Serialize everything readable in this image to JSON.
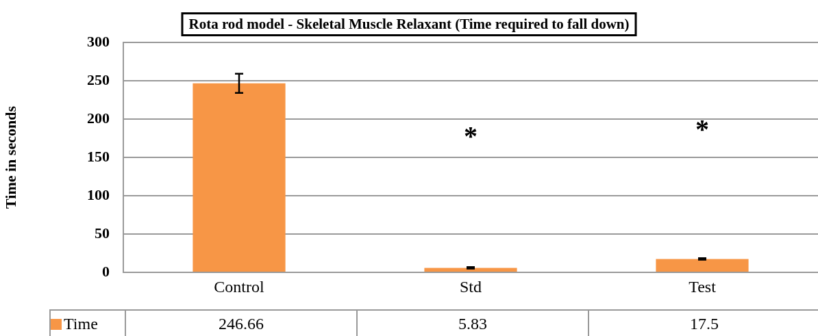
{
  "chart_data": {
    "type": "bar",
    "title": "Rota rod model - Skeletal Muscle Relaxant (Time required to fall down)",
    "ylabel": "Time in seconds",
    "categories": [
      "Control",
      "Std",
      "Test"
    ],
    "series": [
      {
        "name": "Time",
        "color": "#f79646",
        "values": [
          246.66,
          5.83,
          17.5
        ],
        "errors": [
          12.5,
          1,
          1
        ]
      }
    ],
    "ylim": [
      0,
      300
    ],
    "yticks": [
      0,
      50,
      100,
      150,
      200,
      250,
      300
    ],
    "grid": "y",
    "legend": "bottom left",
    "data_labels": true,
    "annotations": [
      "*",
      "*"
    ]
  }
}
